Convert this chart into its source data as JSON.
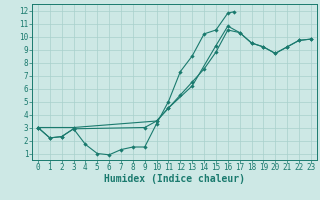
{
  "line_color": "#1a7a6e",
  "bg_color": "#cde8e5",
  "grid_color": "#a8d0cc",
  "xlabel": "Humidex (Indice chaleur)",
  "xlim": [
    -0.5,
    23.5
  ],
  "ylim": [
    0.5,
    12.5
  ],
  "xticks": [
    0,
    1,
    2,
    3,
    4,
    5,
    6,
    7,
    8,
    9,
    10,
    11,
    12,
    13,
    14,
    15,
    16,
    17,
    18,
    19,
    20,
    21,
    22,
    23
  ],
  "yticks": [
    1,
    2,
    3,
    4,
    5,
    6,
    7,
    8,
    9,
    10,
    11,
    12
  ],
  "tick_fontsize": 5.5,
  "xlabel_fontsize": 7.0,
  "line1_x": [
    0,
    1,
    2,
    3,
    4,
    5,
    6,
    7,
    8,
    9,
    10,
    11,
    12,
    13,
    14,
    15,
    16,
    16.5
  ],
  "line1_y": [
    3.0,
    2.2,
    2.3,
    2.9,
    1.7,
    1.0,
    0.9,
    1.3,
    1.5,
    1.5,
    3.3,
    5.0,
    7.3,
    8.5,
    10.2,
    10.5,
    11.8,
    11.9
  ],
  "line2_x": [
    0,
    1,
    2,
    3,
    9,
    10,
    11,
    12,
    13,
    14,
    15,
    16,
    17,
    18,
    19,
    20,
    21,
    22,
    23
  ],
  "line2_y": [
    3.0,
    2.2,
    2.3,
    2.9,
    3.0,
    3.5,
    4.5,
    5.5,
    6.5,
    7.5,
    8.8,
    10.5,
    10.3,
    9.5,
    9.2,
    8.7,
    9.2,
    9.7,
    9.8
  ],
  "line3_x": [
    0,
    3,
    10,
    11,
    13,
    15,
    16,
    17,
    18,
    19,
    20,
    21,
    22,
    23
  ],
  "line3_y": [
    3.0,
    3.0,
    3.5,
    4.5,
    6.2,
    9.3,
    10.8,
    10.3,
    9.5,
    9.2,
    8.7,
    9.2,
    9.7,
    9.8
  ]
}
